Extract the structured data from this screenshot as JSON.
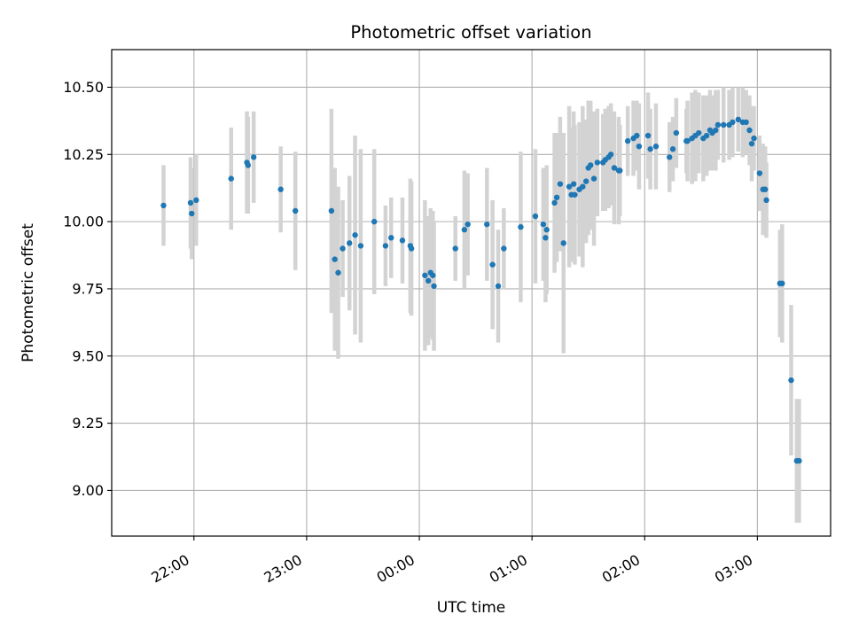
{
  "chart_data": {
    "type": "scatter",
    "title": "Photometric offset variation",
    "xlabel": "UTC time",
    "ylabel": "Photometric offset",
    "x_unit": "UTC time (hours after midnight, negative = before midnight)",
    "xlim": [
      -2.73,
      3.65
    ],
    "ylim": [
      8.83,
      10.64
    ],
    "x_ticks": [
      -2,
      -1,
      0,
      1,
      2,
      3
    ],
    "x_tick_labels": [
      "22:00",
      "23:00",
      "00:00",
      "01:00",
      "02:00",
      "03:00"
    ],
    "y_ticks": [
      9.0,
      9.25,
      9.5,
      9.75,
      10.0,
      10.25,
      10.5
    ],
    "y_tick_labels": [
      "9.00",
      "9.25",
      "9.50",
      "9.75",
      "10.00",
      "10.25",
      "10.50"
    ],
    "grid": true,
    "colors": {
      "point": "#1f77b4",
      "errorbar": "#d3d3d3",
      "grid": "#b0b0b0"
    },
    "series": [
      {
        "x": [
          -2.27,
          -2.03,
          -2.02,
          -1.98,
          -1.67,
          -1.53,
          -1.52,
          -1.47,
          -1.23,
          -1.1,
          -0.78,
          -0.75,
          -0.72,
          -0.68,
          -0.62,
          -0.57,
          -0.52,
          -0.4,
          -0.3,
          -0.25,
          -0.15,
          -0.08,
          -0.07,
          0.05,
          0.08,
          0.1,
          0.12,
          0.13,
          0.32,
          0.4,
          0.43,
          0.6,
          0.65,
          0.7,
          0.75,
          0.9,
          1.03,
          1.1,
          1.12,
          1.13,
          1.2,
          1.22,
          1.25,
          1.28,
          1.33,
          1.35,
          1.37,
          1.38,
          1.42,
          1.45,
          1.48,
          1.5,
          1.52,
          1.55,
          1.58,
          1.63,
          1.65,
          1.68,
          1.7,
          1.73,
          1.77,
          1.78,
          1.85,
          1.9,
          1.93,
          1.95,
          2.03,
          2.05,
          2.1,
          2.22,
          2.25,
          2.28,
          2.37,
          2.38,
          2.42,
          2.45,
          2.48,
          2.52,
          2.55,
          2.58,
          2.6,
          2.63,
          2.65,
          2.7,
          2.75,
          2.78,
          2.83,
          2.87,
          2.9,
          2.93,
          2.95,
          2.97,
          3.02,
          3.05,
          3.07,
          3.08,
          3.2,
          3.22,
          3.3,
          3.35,
          3.37
        ],
        "y": [
          10.06,
          10.07,
          10.03,
          10.08,
          10.16,
          10.22,
          10.21,
          10.24,
          10.12,
          10.04,
          10.04,
          9.86,
          9.81,
          9.9,
          9.92,
          9.95,
          9.91,
          10.0,
          9.91,
          9.94,
          9.93,
          9.91,
          9.9,
          9.8,
          9.78,
          9.81,
          9.8,
          9.76,
          9.9,
          9.97,
          9.99,
          9.99,
          9.84,
          9.76,
          9.9,
          9.98,
          10.02,
          9.99,
          9.94,
          9.97,
          10.07,
          10.09,
          10.14,
          9.92,
          10.13,
          10.1,
          10.14,
          10.1,
          10.12,
          10.13,
          10.15,
          10.2,
          10.21,
          10.16,
          10.22,
          10.22,
          10.23,
          10.24,
          10.25,
          10.2,
          10.19,
          10.19,
          10.3,
          10.31,
          10.32,
          10.28,
          10.32,
          10.27,
          10.28,
          10.24,
          10.27,
          10.33,
          10.3,
          10.3,
          10.31,
          10.32,
          10.33,
          10.31,
          10.32,
          10.34,
          10.33,
          10.34,
          10.36,
          10.36,
          10.36,
          10.37,
          10.38,
          10.37,
          10.37,
          10.34,
          10.29,
          10.31,
          10.18,
          10.12,
          10.12,
          10.08,
          9.77,
          9.77,
          9.41,
          9.11,
          9.11
        ],
        "yerr": [
          0.15,
          0.17,
          0.17,
          0.17,
          0.19,
          0.19,
          0.18,
          0.17,
          0.16,
          0.22,
          0.38,
          0.34,
          0.32,
          0.18,
          0.25,
          0.37,
          0.36,
          0.27,
          0.15,
          0.15,
          0.16,
          0.25,
          0.25,
          0.28,
          0.24,
          0.24,
          0.24,
          0.24,
          0.12,
          0.22,
          0.19,
          0.21,
          0.24,
          0.21,
          0.15,
          0.28,
          0.25,
          0.21,
          0.24,
          0.24,
          0.26,
          0.24,
          0.25,
          0.41,
          0.3,
          0.25,
          0.27,
          0.26,
          0.25,
          0.3,
          0.23,
          0.25,
          0.24,
          0.25,
          0.2,
          0.18,
          0.19,
          0.19,
          0.19,
          0.21,
          0.2,
          0.17,
          0.13,
          0.14,
          0.13,
          0.16,
          0.16,
          0.15,
          0.16,
          0.13,
          0.12,
          0.13,
          0.12,
          0.15,
          0.17,
          0.17,
          0.15,
          0.16,
          0.15,
          0.15,
          0.14,
          0.15,
          0.13,
          0.14,
          0.13,
          0.13,
          0.12,
          0.13,
          0.12,
          0.13,
          0.14,
          0.12,
          0.14,
          0.17,
          0.16,
          0.14,
          0.2,
          0.22,
          0.28,
          0.23,
          0.23
        ]
      }
    ]
  }
}
